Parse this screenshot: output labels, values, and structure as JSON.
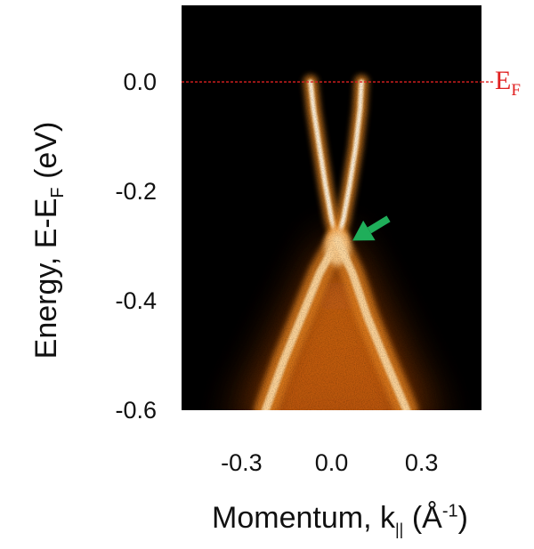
{
  "chart_data": {
    "type": "heatmap",
    "description_kind": "ARPES band map",
    "xlabel_main": "Momentum, k",
    "xlabel_sub": "||",
    "xlabel_unit_open": " (Å",
    "xlabel_unit_sup": "-1",
    "xlabel_unit_close": ")",
    "ylabel_main": "Energy, E-E",
    "ylabel_sub": "F",
    "ylabel_unit": " (eV)",
    "xlim": [
      -0.5,
      0.5
    ],
    "ylim": [
      -0.6,
      0.14
    ],
    "x_ticks": [
      -0.3,
      0.0,
      0.3
    ],
    "x_tick_labels": [
      "-0.3",
      "0.0",
      "0.3"
    ],
    "y_ticks": [
      0.0,
      -0.2,
      -0.4,
      -0.6
    ],
    "y_tick_labels": [
      "0.0",
      "-0.2",
      "-0.4",
      "-0.6"
    ],
    "fermi_level": {
      "energy": 0.0,
      "label_main": "E",
      "label_sub": "F",
      "color": "#e02020",
      "style": "dashed"
    },
    "dirac_point": {
      "k": 0.02,
      "energy": -0.29
    },
    "bands": [
      {
        "name": "upper-left",
        "k": [
          -0.07,
          -0.06,
          -0.04,
          -0.02,
          0.0,
          0.02
        ],
        "energy": [
          0.0,
          -0.05,
          -0.12,
          -0.19,
          -0.25,
          -0.29
        ]
      },
      {
        "name": "upper-right",
        "k": [
          0.1,
          0.095,
          0.08,
          0.06,
          0.04,
          0.02
        ],
        "energy": [
          0.0,
          -0.05,
          -0.12,
          -0.19,
          -0.25,
          -0.29
        ]
      },
      {
        "name": "lower-left",
        "k": [
          0.02,
          -0.04,
          -0.1,
          -0.16,
          -0.22
        ],
        "energy": [
          -0.29,
          -0.35,
          -0.43,
          -0.51,
          -0.6
        ]
      },
      {
        "name": "lower-right",
        "k": [
          0.02,
          0.07,
          0.12,
          0.18,
          0.25
        ],
        "energy": [
          -0.29,
          -0.35,
          -0.43,
          -0.51,
          -0.6
        ]
      }
    ],
    "arrow": {
      "color": "#1fae5a",
      "tip_k": 0.07,
      "tip_energy": -0.29,
      "tail_k": 0.19,
      "tail_energy": -0.25
    },
    "colormap": [
      "#000000",
      "#4a1a00",
      "#b04a00",
      "#f08a20",
      "#ffd9a0",
      "#ffffff"
    ],
    "grid": false
  }
}
